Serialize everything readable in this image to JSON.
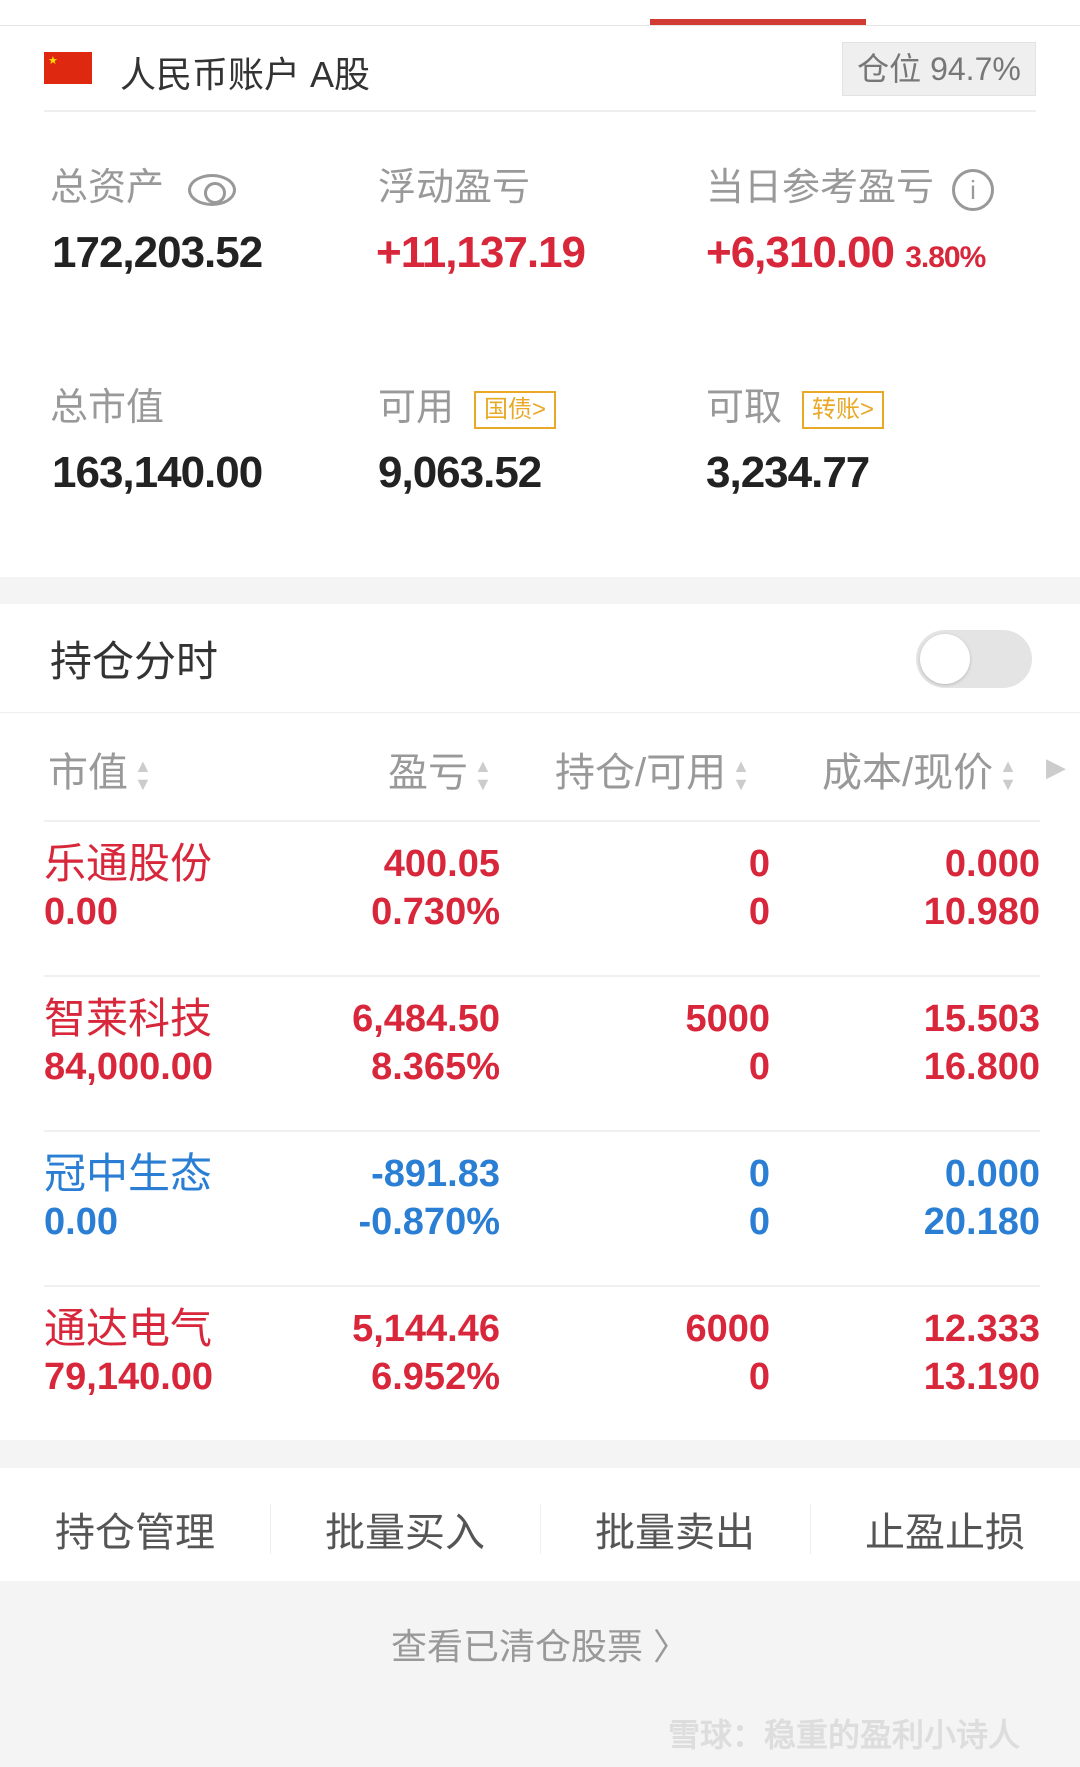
{
  "account": {
    "flag": "cn-flag",
    "name": "人民币账户 A股",
    "position_label": "仓位",
    "position_value": "94.7%"
  },
  "summary": {
    "total_assets_label": "总资产",
    "total_assets": "172,203.52",
    "float_pl_label": "浮动盈亏",
    "float_pl": "+11,137.19",
    "day_pl_label": "当日参考盈亏",
    "day_pl": "+6,310.00",
    "day_pl_pct": "3.80%",
    "market_value_label": "总市值",
    "market_value": "163,140.00",
    "available_label": "可用",
    "available_tag": "国债>",
    "available": "9,063.52",
    "withdrawable_label": "可取",
    "withdrawable_tag": "转账>",
    "withdrawable": "3,234.77"
  },
  "holdings": {
    "title": "持仓分时",
    "toggle_on": false,
    "columns": [
      "市值",
      "盈亏",
      "持仓/可用",
      "成本/现价"
    ],
    "rows": [
      {
        "name": "乐通股份",
        "value": "0.00",
        "pl": "400.05",
        "pl_pct": "0.730%",
        "hold": "0",
        "avail": "0",
        "cost": "0.000",
        "price": "10.980",
        "color": "#d8263a"
      },
      {
        "name": "智莱科技",
        "value": "84,000.00",
        "pl": "6,484.50",
        "pl_pct": "8.365%",
        "hold": "5000",
        "avail": "0",
        "cost": "15.503",
        "price": "16.800",
        "color": "#d8263a"
      },
      {
        "name": "冠中生态",
        "value": "0.00",
        "pl": "-891.83",
        "pl_pct": "-0.870%",
        "hold": "0",
        "avail": "0",
        "cost": "0.000",
        "price": "20.180",
        "color": "#2a7fd4"
      },
      {
        "name": "通达电气",
        "value": "79,140.00",
        "pl": "5,144.46",
        "pl_pct": "6.952%",
        "hold": "6000",
        "avail": "0",
        "cost": "12.333",
        "price": "13.190",
        "color": "#d8263a"
      }
    ]
  },
  "actions": [
    "持仓管理",
    "批量买入",
    "批量卖出",
    "止盈止损"
  ],
  "cleared_link": "查看已清仓股票 〉",
  "watermark": "雪球：稳重的盈利小诗人"
}
